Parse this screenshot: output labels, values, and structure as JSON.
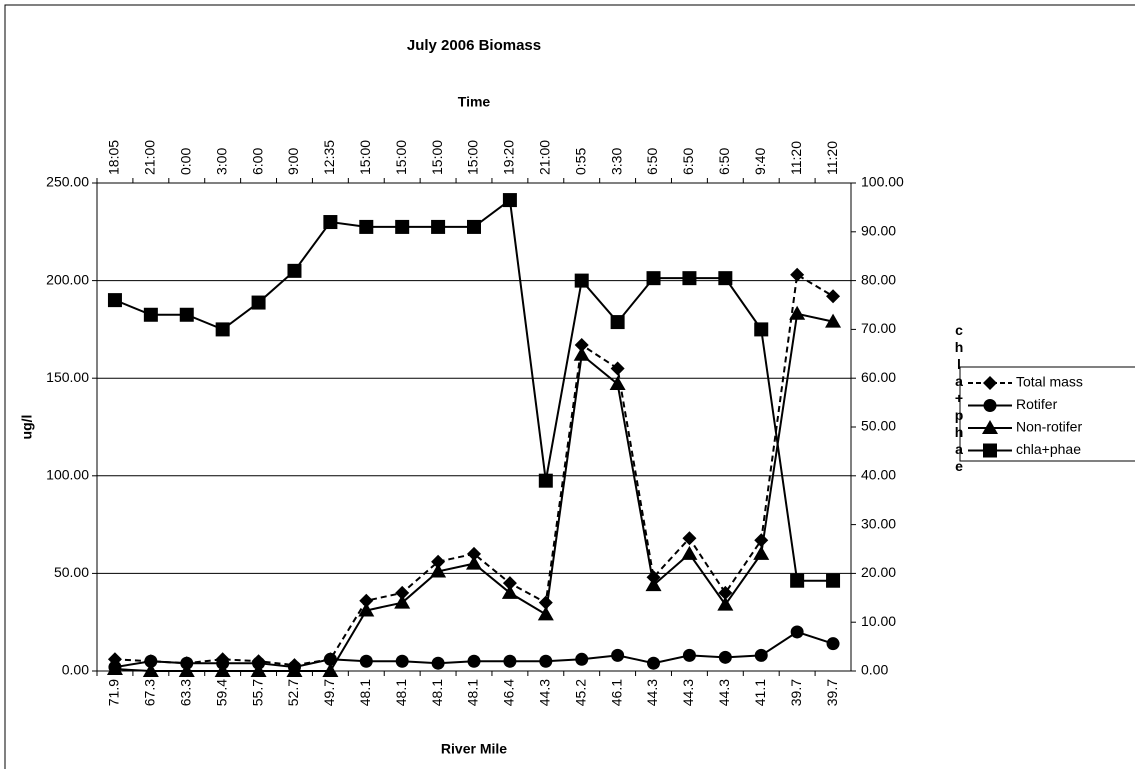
{
  "chart_data": {
    "type": "line",
    "title": "July 2006 Biomass",
    "x_label": "River Mile",
    "x2_label": "Time",
    "y_label": "ug/l",
    "y2_label": "chla+phae",
    "categories": [
      "71.9",
      "67.3",
      "63.3",
      "59.4",
      "55.7",
      "52.7",
      "49.7",
      "48.1",
      "48.1",
      "48.1",
      "48.1",
      "46.4",
      "44.3",
      "45.2",
      "46.1",
      "44.3",
      "44.3",
      "44.3",
      "41.1",
      "39.7",
      "39.7"
    ],
    "x2_categories": [
      "18:05",
      "21:00",
      "0:00",
      "3:00",
      "6:00",
      "9:00",
      "12:35",
      "15:00",
      "15:00",
      "15:00",
      "15:00",
      "19:20",
      "21:00",
      "0:55",
      "3:30",
      "6:50",
      "6:50",
      "6:50",
      "9:40",
      "11:20",
      "11:20"
    ],
    "ylim": [
      0,
      250
    ],
    "yticks": [
      {
        "value": 0,
        "label": "0.00"
      },
      {
        "value": 50,
        "label": "50.00"
      },
      {
        "value": 100,
        "label": "100.00"
      },
      {
        "value": 150,
        "label": "150.00"
      },
      {
        "value": 200,
        "label": "200.00"
      },
      {
        "value": 250,
        "label": "250.00"
      }
    ],
    "y2lim": [
      0,
      100
    ],
    "y2ticks": [
      {
        "value": 0,
        "label": "0.00"
      },
      {
        "value": 10,
        "label": "10.00"
      },
      {
        "value": 20,
        "label": "20.00"
      },
      {
        "value": 30,
        "label": "30.00"
      },
      {
        "value": 40,
        "label": "40.00"
      },
      {
        "value": 50,
        "label": "50.00"
      },
      {
        "value": 60,
        "label": "60.00"
      },
      {
        "value": 70,
        "label": "70.00"
      },
      {
        "value": 80,
        "label": "80.00"
      },
      {
        "value": 90,
        "label": "90.00"
      },
      {
        "value": 100,
        "label": "100.00"
      }
    ],
    "grid": true,
    "legend": "right",
    "series": [
      {
        "name": "Total mass",
        "color": "#000000",
        "marker": "diamond",
        "dashed": true,
        "values": [
          6,
          5,
          4,
          6,
          5,
          3,
          6,
          36,
          40,
          56,
          60,
          45,
          35,
          167,
          155,
          48,
          68,
          40,
          67,
          203,
          192
        ]
      },
      {
        "name": "Rotifer",
        "color": "#000000",
        "marker": "circle",
        "dashed": false,
        "values": [
          2,
          5,
          4,
          4,
          4,
          2,
          6,
          5,
          5,
          4,
          5,
          5,
          5,
          6,
          8,
          4,
          8,
          7,
          8,
          20,
          14
        ]
      },
      {
        "name": "Non-rotifer",
        "color": "#000000",
        "marker": "triangle",
        "dashed": false,
        "values": [
          1,
          0,
          0,
          0,
          0,
          0,
          0,
          31,
          35,
          51,
          55,
          40,
          29,
          162,
          147,
          44,
          60,
          34,
          60,
          183,
          179
        ]
      },
      {
        "name": "chla+phae",
        "color": "#000000",
        "marker": "square",
        "dashed": false,
        "axis": "y2",
        "values": [
          76,
          73,
          73,
          70,
          75.5,
          82,
          92,
          91,
          91,
          91,
          91,
          96.5,
          39,
          80,
          71.5,
          80.5,
          80.5,
          80.5,
          70,
          18.5,
          18.5
        ]
      }
    ]
  }
}
